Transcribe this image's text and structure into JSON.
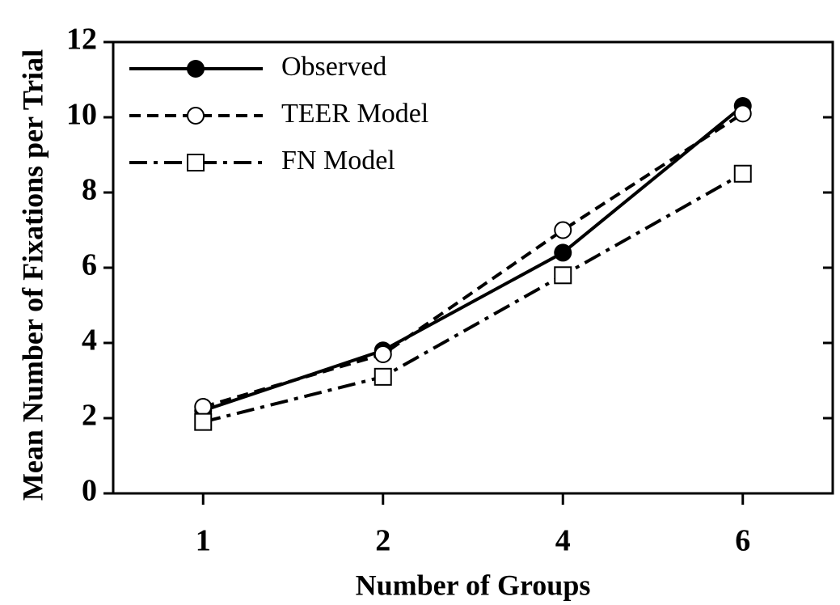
{
  "chart_data": {
    "type": "line",
    "x_label": "Number of Groups",
    "y_label": "Mean Number of Fixations per Trial",
    "categories": [
      "1",
      "2",
      "4",
      "6"
    ],
    "series": [
      {
        "name": "Observed",
        "color": "#000000",
        "linestyle": "solid",
        "marker": "filled-circle",
        "values": [
          2.2,
          3.8,
          6.4,
          10.3
        ]
      },
      {
        "name": "TEER Model",
        "color": "#000000",
        "linestyle": "dashed",
        "marker": "open-circle",
        "values": [
          2.3,
          3.7,
          7.0,
          10.1
        ]
      },
      {
        "name": "FN Model",
        "color": "#000000",
        "linestyle": "dashdot",
        "marker": "open-square",
        "values": [
          1.9,
          3.1,
          5.8,
          8.5
        ]
      }
    ],
    "ylim": [
      0,
      12
    ],
    "yticks": [
      0,
      2,
      4,
      6,
      8,
      10,
      12
    ],
    "legend": "upper-left",
    "grid": false
  }
}
